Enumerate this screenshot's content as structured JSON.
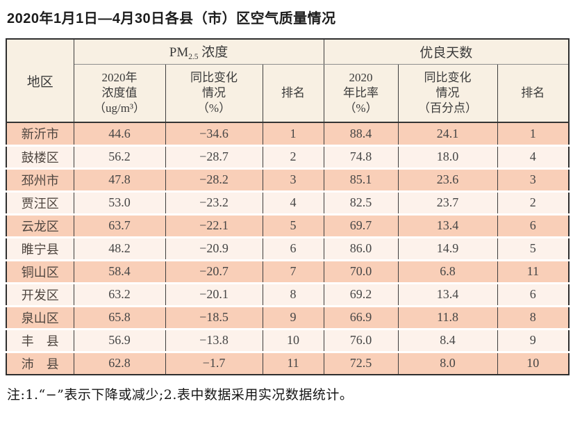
{
  "title": "2020年1月1日—4月30日各县（市）区空气质量情况",
  "table": {
    "region_header": "地区",
    "pm_group": {
      "prefix": "PM",
      "sub": "2.5",
      "suffix": " 浓度"
    },
    "good_days_group": "优良天数",
    "pm_columns": {
      "value": "2020年\n浓度值\n（ug/m³）",
      "change": "同比变化\n情况\n（%）",
      "rank": "排名"
    },
    "good_columns": {
      "ratio": "2020\n年比率\n（%）",
      "change": "同比变化\n情况\n（百分点）",
      "rank": "排名"
    },
    "rows": [
      {
        "region": "新沂市",
        "pm_value": "44.6",
        "pm_change": "−34.6",
        "pm_rank": "1",
        "good_ratio": "88.4",
        "good_change": "24.1",
        "good_rank": "1"
      },
      {
        "region": "鼓楼区",
        "pm_value": "56.2",
        "pm_change": "−28.7",
        "pm_rank": "2",
        "good_ratio": "74.8",
        "good_change": "18.0",
        "good_rank": "4"
      },
      {
        "region": "邳州市",
        "pm_value": "47.8",
        "pm_change": "−28.2",
        "pm_rank": "3",
        "good_ratio": "85.1",
        "good_change": "23.6",
        "good_rank": "3"
      },
      {
        "region": "贾汪区",
        "pm_value": "53.0",
        "pm_change": "−23.2",
        "pm_rank": "4",
        "good_ratio": "82.5",
        "good_change": "23.7",
        "good_rank": "2"
      },
      {
        "region": "云龙区",
        "pm_value": "63.7",
        "pm_change": "−22.1",
        "pm_rank": "5",
        "good_ratio": "69.7",
        "good_change": "13.4",
        "good_rank": "6"
      },
      {
        "region": "睢宁县",
        "pm_value": "48.2",
        "pm_change": "−20.9",
        "pm_rank": "6",
        "good_ratio": "86.0",
        "good_change": "14.9",
        "good_rank": "5"
      },
      {
        "region": "铜山区",
        "pm_value": "58.4",
        "pm_change": "−20.7",
        "pm_rank": "7",
        "good_ratio": "70.0",
        "good_change": "6.8",
        "good_rank": "11"
      },
      {
        "region": "开发区",
        "pm_value": "63.2",
        "pm_change": "−20.1",
        "pm_rank": "8",
        "good_ratio": "69.2",
        "good_change": "13.4",
        "good_rank": "6"
      },
      {
        "region": "泉山区",
        "pm_value": "65.8",
        "pm_change": "−18.5",
        "pm_rank": "9",
        "good_ratio": "66.9",
        "good_change": "11.8",
        "good_rank": "8"
      },
      {
        "region": "丰　县",
        "pm_value": "56.9",
        "pm_change": "−13.8",
        "pm_rank": "10",
        "good_ratio": "76.0",
        "good_change": "8.4",
        "good_rank": "9"
      },
      {
        "region": "沛　县",
        "pm_value": "62.8",
        "pm_change": "−1.7",
        "pm_rank": "11",
        "good_ratio": "72.5",
        "good_change": "8.0",
        "good_rank": "10"
      }
    ]
  },
  "note": "注:1.“−”表示下降或减少;2.表中数据采用实况数据统计。",
  "colors": {
    "row_odd": "#f9cfb8",
    "row_even": "#fdf2eb",
    "header_bg": "#f8f0e3",
    "border_dark": "#3d3d3d",
    "row_gap": "#ffffff"
  }
}
